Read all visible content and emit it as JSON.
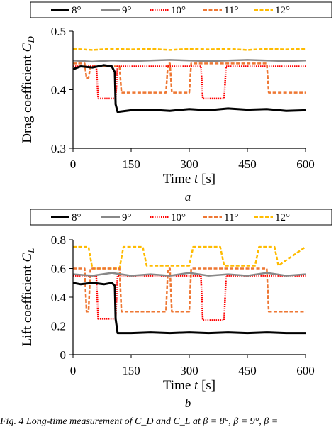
{
  "caption": "Fig. 4 Long-time measurement of C_D and C_L at β = 8°, β = 9°, β =",
  "chart_data": [
    {
      "type": "line",
      "panel_label": "a",
      "xlabel_prefix": "Time ",
      "xlabel_var": "t",
      "xlabel_suffix": " [s]",
      "ylabel_prefix": "Drag coefficient ",
      "ylabel_var": "C",
      "ylabel_sub": "D",
      "xlim": [
        0,
        600
      ],
      "ylim": [
        0.3,
        0.5
      ],
      "xticks": [
        0,
        150,
        300,
        450,
        600
      ],
      "yticks": [
        0.3,
        0.4,
        0.5
      ],
      "ytick_labels": [
        "0.3",
        "0.4",
        "0.5"
      ],
      "legend": "top",
      "series": [
        {
          "name": "8°",
          "color": "#000000",
          "dash": "solid",
          "x": [
            0,
            20,
            50,
            80,
            100,
            108,
            110,
            115,
            150,
            200,
            250,
            300,
            350,
            400,
            450,
            500,
            550,
            600
          ],
          "y": [
            0.435,
            0.44,
            0.438,
            0.442,
            0.44,
            0.43,
            0.375,
            0.362,
            0.365,
            0.366,
            0.364,
            0.367,
            0.365,
            0.368,
            0.366,
            0.367,
            0.364,
            0.365
          ]
        },
        {
          "name": "9°",
          "color": "#888888",
          "dash": "solid",
          "x": [
            0,
            50,
            100,
            150,
            200,
            250,
            300,
            350,
            400,
            450,
            500,
            550,
            600
          ],
          "y": [
            0.45,
            0.448,
            0.45,
            0.449,
            0.45,
            0.451,
            0.45,
            0.449,
            0.45,
            0.451,
            0.45,
            0.449,
            0.45
          ]
        },
        {
          "name": "10°",
          "color": "#ff0000",
          "dash": "dotted",
          "x": [
            0,
            60,
            65,
            110,
            115,
            330,
            335,
            390,
            395,
            600
          ],
          "y": [
            0.44,
            0.44,
            0.385,
            0.385,
            0.44,
            0.44,
            0.385,
            0.385,
            0.44,
            0.44
          ]
        },
        {
          "name": "11°",
          "color": "#ee7733",
          "dash": "dashed",
          "x": [
            0,
            30,
            35,
            40,
            45,
            120,
            125,
            240,
            245,
            250,
            255,
            300,
            305,
            410,
            415,
            500,
            505,
            600
          ],
          "y": [
            0.445,
            0.445,
            0.42,
            0.42,
            0.44,
            0.44,
            0.395,
            0.395,
            0.445,
            0.445,
            0.395,
            0.395,
            0.445,
            0.445,
            0.445,
            0.445,
            0.395,
            0.395
          ]
        },
        {
          "name": "12°",
          "color": "#ffbb00",
          "dash": "dashed",
          "x": [
            0,
            50,
            100,
            150,
            200,
            250,
            300,
            350,
            400,
            450,
            500,
            550,
            600
          ],
          "y": [
            0.47,
            0.468,
            0.47,
            0.469,
            0.47,
            0.468,
            0.47,
            0.469,
            0.47,
            0.468,
            0.47,
            0.469,
            0.47
          ]
        }
      ]
    },
    {
      "type": "line",
      "panel_label": "b",
      "xlabel_prefix": "Time ",
      "xlabel_var": "t",
      "xlabel_suffix": " [s]",
      "ylabel_prefix": "Lift coefficient ",
      "ylabel_var": "C",
      "ylabel_sub": "L",
      "xlim": [
        0,
        600
      ],
      "ylim": [
        0,
        0.8
      ],
      "xticks": [
        0,
        150,
        300,
        450,
        600
      ],
      "yticks": [
        0,
        0.2,
        0.4,
        0.6,
        0.8
      ],
      "ytick_labels": [
        "0",
        "0.2",
        "0.4",
        "0.6",
        "0.8"
      ],
      "legend": "top",
      "series": [
        {
          "name": "8°",
          "color": "#000000",
          "dash": "solid",
          "x": [
            0,
            20,
            50,
            80,
            100,
            108,
            110,
            115,
            150,
            200,
            250,
            300,
            350,
            400,
            450,
            500,
            550,
            600
          ],
          "y": [
            0.5,
            0.49,
            0.5,
            0.49,
            0.5,
            0.48,
            0.25,
            0.15,
            0.15,
            0.155,
            0.15,
            0.155,
            0.15,
            0.155,
            0.15,
            0.155,
            0.15,
            0.15
          ]
        },
        {
          "name": "9°",
          "color": "#888888",
          "dash": "solid",
          "x": [
            0,
            50,
            100,
            150,
            200,
            250,
            300,
            350,
            400,
            450,
            500,
            550,
            600
          ],
          "y": [
            0.56,
            0.55,
            0.57,
            0.55,
            0.56,
            0.55,
            0.57,
            0.55,
            0.56,
            0.55,
            0.57,
            0.55,
            0.56
          ]
        },
        {
          "name": "10°",
          "color": "#ff0000",
          "dash": "dotted",
          "x": [
            0,
            60,
            65,
            110,
            115,
            330,
            335,
            390,
            395,
            600
          ],
          "y": [
            0.55,
            0.55,
            0.25,
            0.25,
            0.55,
            0.55,
            0.24,
            0.24,
            0.55,
            0.55
          ]
        },
        {
          "name": "11°",
          "color": "#ee7733",
          "dash": "dashed",
          "x": [
            0,
            30,
            35,
            40,
            45,
            120,
            125,
            240,
            245,
            250,
            255,
            300,
            305,
            410,
            415,
            500,
            505,
            600
          ],
          "y": [
            0.6,
            0.6,
            0.3,
            0.3,
            0.6,
            0.6,
            0.3,
            0.3,
            0.6,
            0.6,
            0.3,
            0.3,
            0.6,
            0.6,
            0.6,
            0.6,
            0.3,
            0.3
          ]
        },
        {
          "name": "12°",
          "color": "#ffbb00",
          "dash": "dashed",
          "x": [
            0,
            40,
            50,
            120,
            130,
            180,
            190,
            300,
            310,
            380,
            390,
            470,
            480,
            520,
            530,
            600
          ],
          "y": [
            0.75,
            0.75,
            0.6,
            0.6,
            0.75,
            0.75,
            0.62,
            0.62,
            0.75,
            0.75,
            0.62,
            0.62,
            0.75,
            0.75,
            0.62,
            0.75
          ]
        }
      ]
    }
  ]
}
